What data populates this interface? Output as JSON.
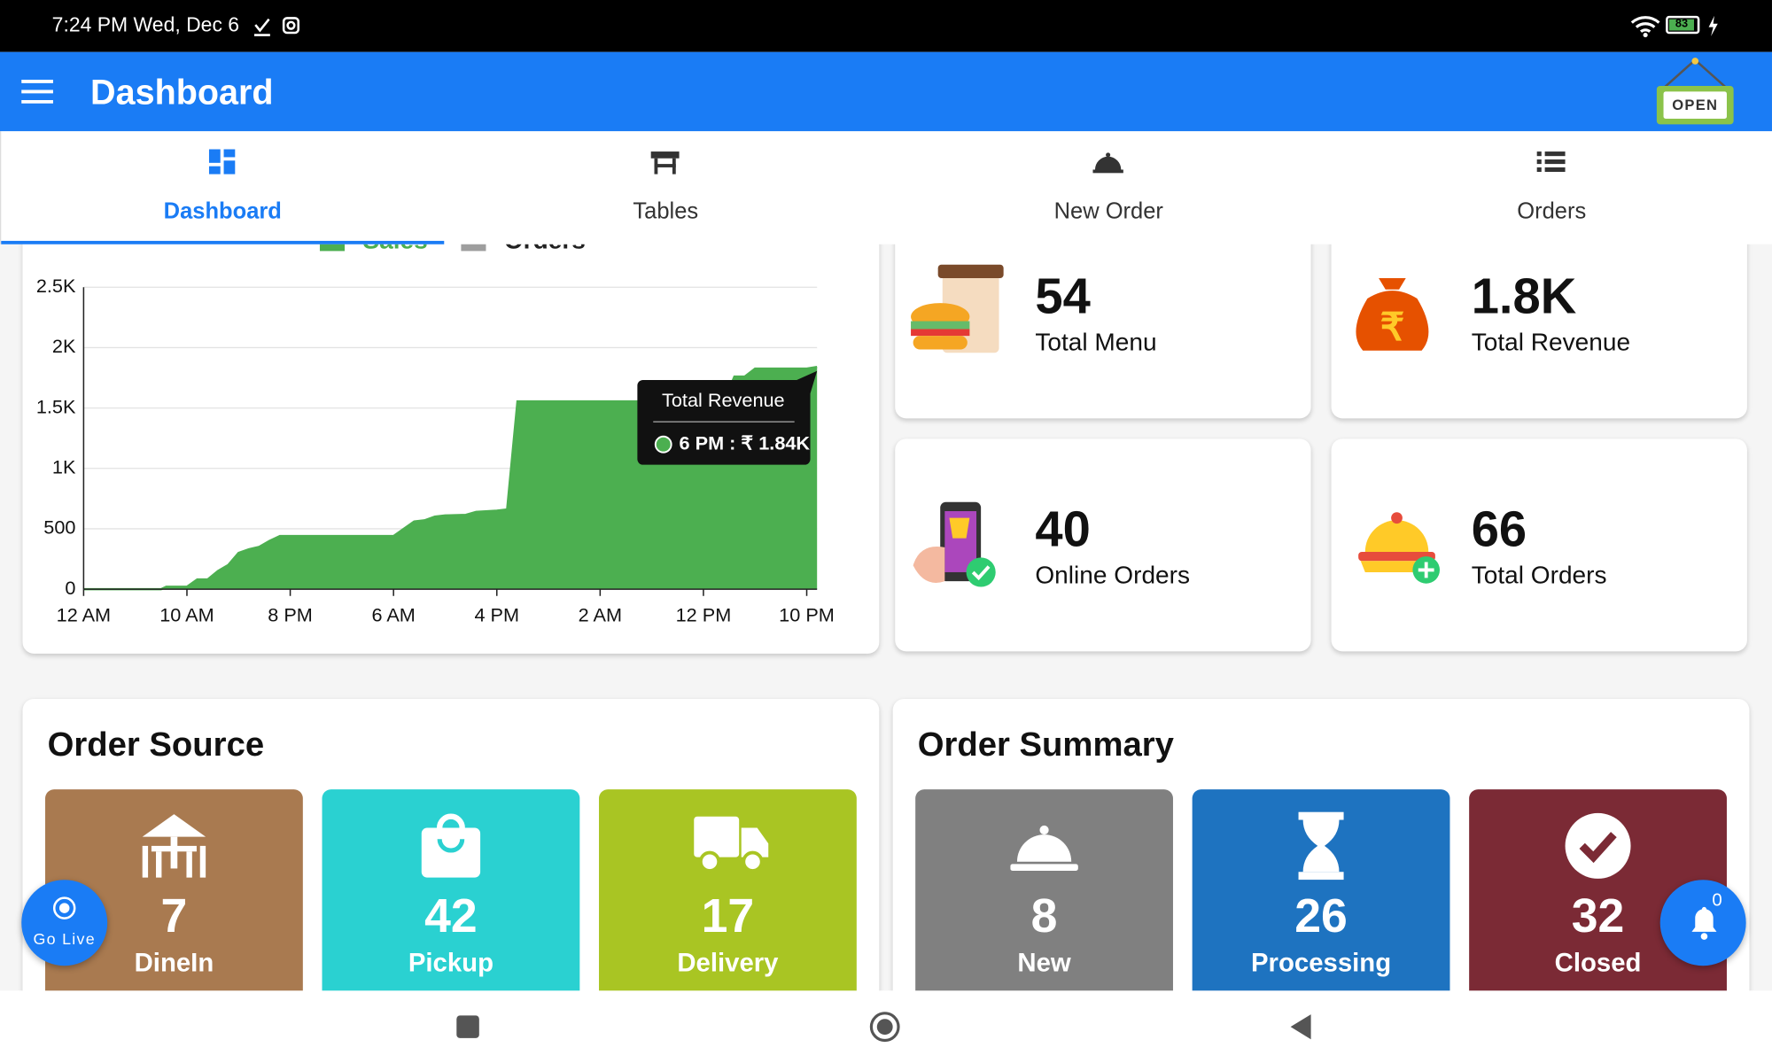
{
  "status_bar": {
    "time": "7:24 PM Wed, Dec 6",
    "battery": "83"
  },
  "app_bar": {
    "title": "Dashboard",
    "badge": "OPEN"
  },
  "tabs": [
    {
      "label": "Dashboard",
      "active": true
    },
    {
      "label": "Tables",
      "active": false
    },
    {
      "label": "New Order",
      "active": false
    },
    {
      "label": "Orders",
      "active": false
    }
  ],
  "chart_data": {
    "type": "area",
    "legend": [
      {
        "name": "Sales",
        "color": "#4caf50"
      },
      {
        "name": "Orders",
        "color": "#9e9e9e"
      }
    ],
    "color": "#4caf50",
    "x": [
      0,
      7.5,
      8,
      10,
      11,
      12,
      13,
      14,
      15,
      16,
      17,
      18,
      19,
      30,
      31,
      32,
      33,
      34,
      35,
      37,
      38,
      40,
      41,
      42,
      62,
      63,
      64,
      65,
      70,
      71
    ],
    "values": [
      0,
      0,
      20,
      20,
      80,
      80,
      150,
      200,
      300,
      330,
      350,
      400,
      440,
      440,
      500,
      560,
      570,
      600,
      610,
      615,
      640,
      650,
      660,
      1555,
      1555,
      1760,
      1760,
      1826,
      1826,
      1840
    ],
    "xlim": [
      0,
      71
    ],
    "xticks": [
      {
        "value": 0,
        "label": "12 AM"
      },
      {
        "value": 10,
        "label": "10 AM"
      },
      {
        "value": 20,
        "label": "8 PM"
      },
      {
        "value": 30,
        "label": "6 AM"
      },
      {
        "value": 40,
        "label": "4 PM"
      },
      {
        "value": 50,
        "label": "2 AM"
      },
      {
        "value": 60,
        "label": "12 PM"
      },
      {
        "value": 70,
        "label": "10 PM"
      }
    ],
    "ylim": [
      0,
      2500
    ],
    "yticks": [
      0,
      500,
      {
        "value": 1000,
        "label": "1K"
      },
      {
        "value": 1500,
        "label": "1.5K"
      },
      {
        "value": 2000,
        "label": "2K"
      },
      {
        "value": 2500,
        "label": "2.5K"
      }
    ],
    "grid": true,
    "tooltip": {
      "title": "Total Revenue",
      "label": "6 PM : ₹ 1.84K"
    }
  },
  "stats": [
    {
      "value": "54",
      "label": "Total Menu"
    },
    {
      "value": "1.8K",
      "label": "Total Revenue"
    },
    {
      "value": "40",
      "label": "Online Orders"
    },
    {
      "value": "66",
      "label": "Total Orders"
    }
  ],
  "order_source": {
    "title": "Order Source",
    "items": [
      {
        "count": 7,
        "label": "DineIn",
        "color": "#a97a50"
      },
      {
        "count": 42,
        "label": "Pickup",
        "color": "#2ad1d1"
      },
      {
        "count": 17,
        "label": "Delivery",
        "color": "#a9c523"
      }
    ]
  },
  "order_summary": {
    "title": "Order Summary",
    "items": [
      {
        "count": 8,
        "label": "New",
        "color": "#808080"
      },
      {
        "count": 26,
        "label": "Processing",
        "color": "#1e73c0"
      },
      {
        "count": 32,
        "label": "Closed",
        "color": "#7b2a35"
      }
    ]
  },
  "go_live": "Go Live",
  "notifications": 0
}
